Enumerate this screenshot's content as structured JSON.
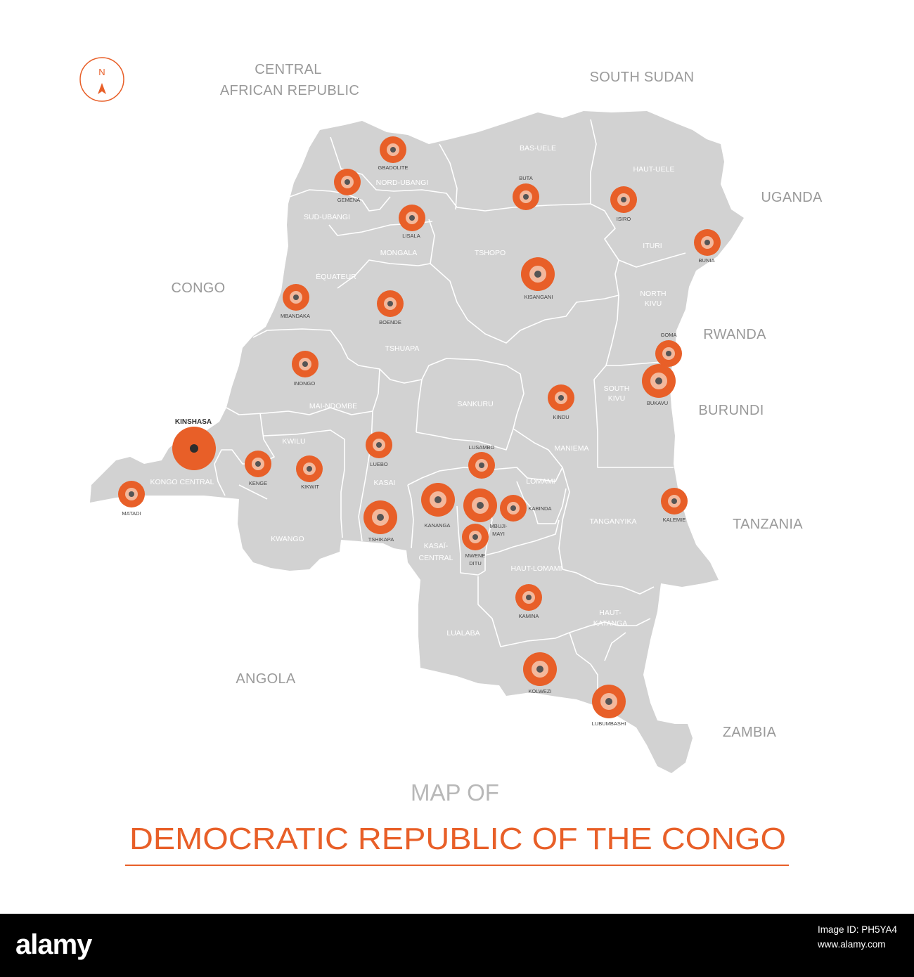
{
  "compass": {
    "letter": "N"
  },
  "neighbors": [
    {
      "key": "car-1",
      "label": "CENTRAL"
    },
    {
      "key": "car-2",
      "label": "AFRICAN REPUBLIC"
    },
    {
      "key": "south-sudan",
      "label": "SOUTH SUDAN"
    },
    {
      "key": "uganda",
      "label": "UGANDA"
    },
    {
      "key": "congo",
      "label": "CONGO"
    },
    {
      "key": "rwanda",
      "label": "RWANDA"
    },
    {
      "key": "burundi",
      "label": "BURUNDI"
    },
    {
      "key": "tanzania",
      "label": "TANZANIA"
    },
    {
      "key": "angola",
      "label": "ANGOLA"
    },
    {
      "key": "zambia",
      "label": "ZAMBIA"
    }
  ],
  "provinces": [
    "BAS-UELE",
    "HAUT-UELE",
    "NORD-UBANGI",
    "SUD-UBANGI",
    "MONGALA",
    "TSHOPO",
    "ITURI",
    "ÉQUATEUR",
    "NORTH",
    "KIVU",
    "TSHUAPA",
    "SANKURU",
    "SOUTH",
    "KIVU",
    "MAI-NDOMBE",
    "KWILU",
    "MANIEMA",
    "LOMAMI",
    "KONGO CENTRAL",
    "KASAI",
    "TANGANYIKA",
    "KWANGO",
    "KASAÏ-",
    "CENTRAL",
    "HAUT-LOMAMI",
    "HAUT-",
    "KATANGA",
    "LUALABA"
  ],
  "capital": {
    "name": "KINSHASA"
  },
  "cities": [
    "GBADOLITE",
    "GEMENA",
    "LISALA",
    "BUTA",
    "ISIRO",
    "BUNIA",
    "MBANDAKA",
    "BOENDE",
    "KISANGANI",
    "GOMA",
    "BUKAVU",
    "INONGO",
    "KINDU",
    "LUEBO",
    "LUSAMBO",
    "KENGE",
    "KIKWIT",
    "MATADI",
    "KANANGA",
    "MBUJI-",
    "MAYI",
    "KABINDA",
    "TSHIKAPA",
    "MWENE",
    "DITU",
    "KALEMIE",
    "KAMINA",
    "KOLWEZI",
    "LUBUMBASHI"
  ],
  "title": {
    "line1": "MAP OF",
    "line2": "DEMOCRATIC REPUBLIC OF THE CONGO"
  },
  "footer": {
    "logo": "alamy",
    "image_id": "Image ID: PH5YA4",
    "site": "www.alamy.com"
  },
  "colors": {
    "land": "#d2d2d2",
    "border": "#ffffff",
    "accent": "#e85f28",
    "marker_center": "#555555"
  }
}
